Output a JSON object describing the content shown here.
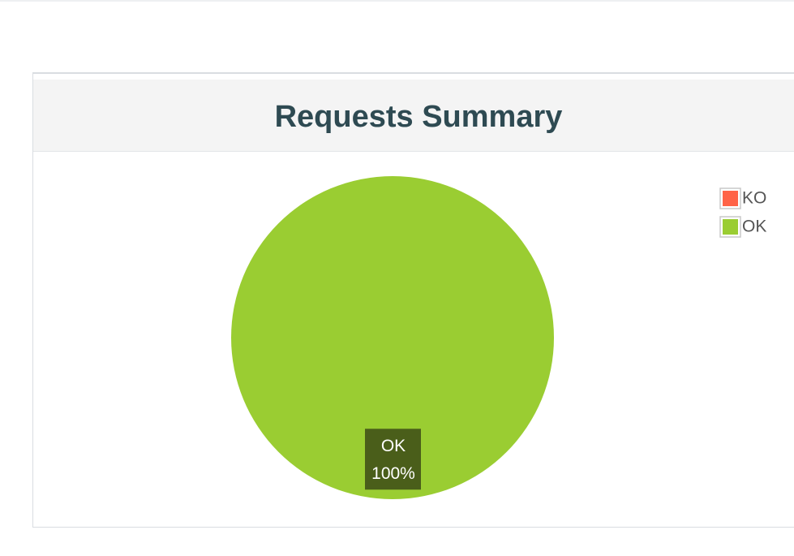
{
  "chart_data": {
    "type": "pie",
    "title": "Requests Summary",
    "categories": [
      "KO",
      "OK"
    ],
    "values": [
      0,
      100
    ],
    "value_labels": [
      null,
      "100%"
    ],
    "colors": [
      "#ff6347",
      "#9acd32"
    ],
    "legend": "top-right"
  }
}
